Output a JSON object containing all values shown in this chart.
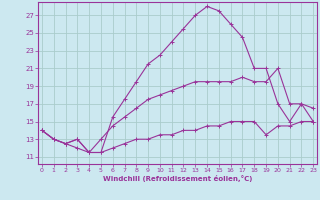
{
  "xlabel": "Windchill (Refroidissement éolien,°C)",
  "background_color": "#cce8f0",
  "grid_color": "#aacccc",
  "line_color": "#993399",
  "x_ticks": [
    0,
    1,
    2,
    3,
    4,
    5,
    6,
    7,
    8,
    9,
    10,
    11,
    12,
    13,
    14,
    15,
    16,
    17,
    18,
    19,
    20,
    21,
    22,
    23
  ],
  "y_ticks": [
    11,
    13,
    15,
    17,
    19,
    21,
    23,
    25,
    27
  ],
  "xlim": [
    -0.3,
    23.3
  ],
  "ylim": [
    10.2,
    28.5
  ],
  "line1_x": [
    0,
    1,
    2,
    3,
    4,
    5,
    6,
    7,
    8,
    9,
    10,
    11,
    12,
    13,
    14,
    15,
    16,
    17,
    18,
    19,
    20,
    21,
    22,
    23
  ],
  "line1_y": [
    14.0,
    13.0,
    12.5,
    13.0,
    11.5,
    11.5,
    15.5,
    17.5,
    19.5,
    21.5,
    22.5,
    24.0,
    25.5,
    27.0,
    28.0,
    27.5,
    26.0,
    24.5,
    21.0,
    21.0,
    17.0,
    15.0,
    17.0,
    15.0
  ],
  "line2_x": [
    0,
    1,
    2,
    3,
    4,
    5,
    6,
    7,
    8,
    9,
    10,
    11,
    12,
    13,
    14,
    15,
    16,
    17,
    18,
    19,
    20,
    21,
    22,
    23
  ],
  "line2_y": [
    14.0,
    13.0,
    12.5,
    13.0,
    11.5,
    13.0,
    14.5,
    15.5,
    16.5,
    17.5,
    18.0,
    18.5,
    19.0,
    19.5,
    19.5,
    19.5,
    19.5,
    20.0,
    19.5,
    19.5,
    21.0,
    17.0,
    17.0,
    16.5
  ],
  "line3_x": [
    0,
    1,
    2,
    3,
    4,
    5,
    6,
    7,
    8,
    9,
    10,
    11,
    12,
    13,
    14,
    15,
    16,
    17,
    18,
    19,
    20,
    21,
    22,
    23
  ],
  "line3_y": [
    14.0,
    13.0,
    12.5,
    12.0,
    11.5,
    11.5,
    12.0,
    12.5,
    13.0,
    13.0,
    13.5,
    13.5,
    14.0,
    14.0,
    14.5,
    14.5,
    15.0,
    15.0,
    15.0,
    13.5,
    14.5,
    14.5,
    15.0,
    15.0
  ]
}
